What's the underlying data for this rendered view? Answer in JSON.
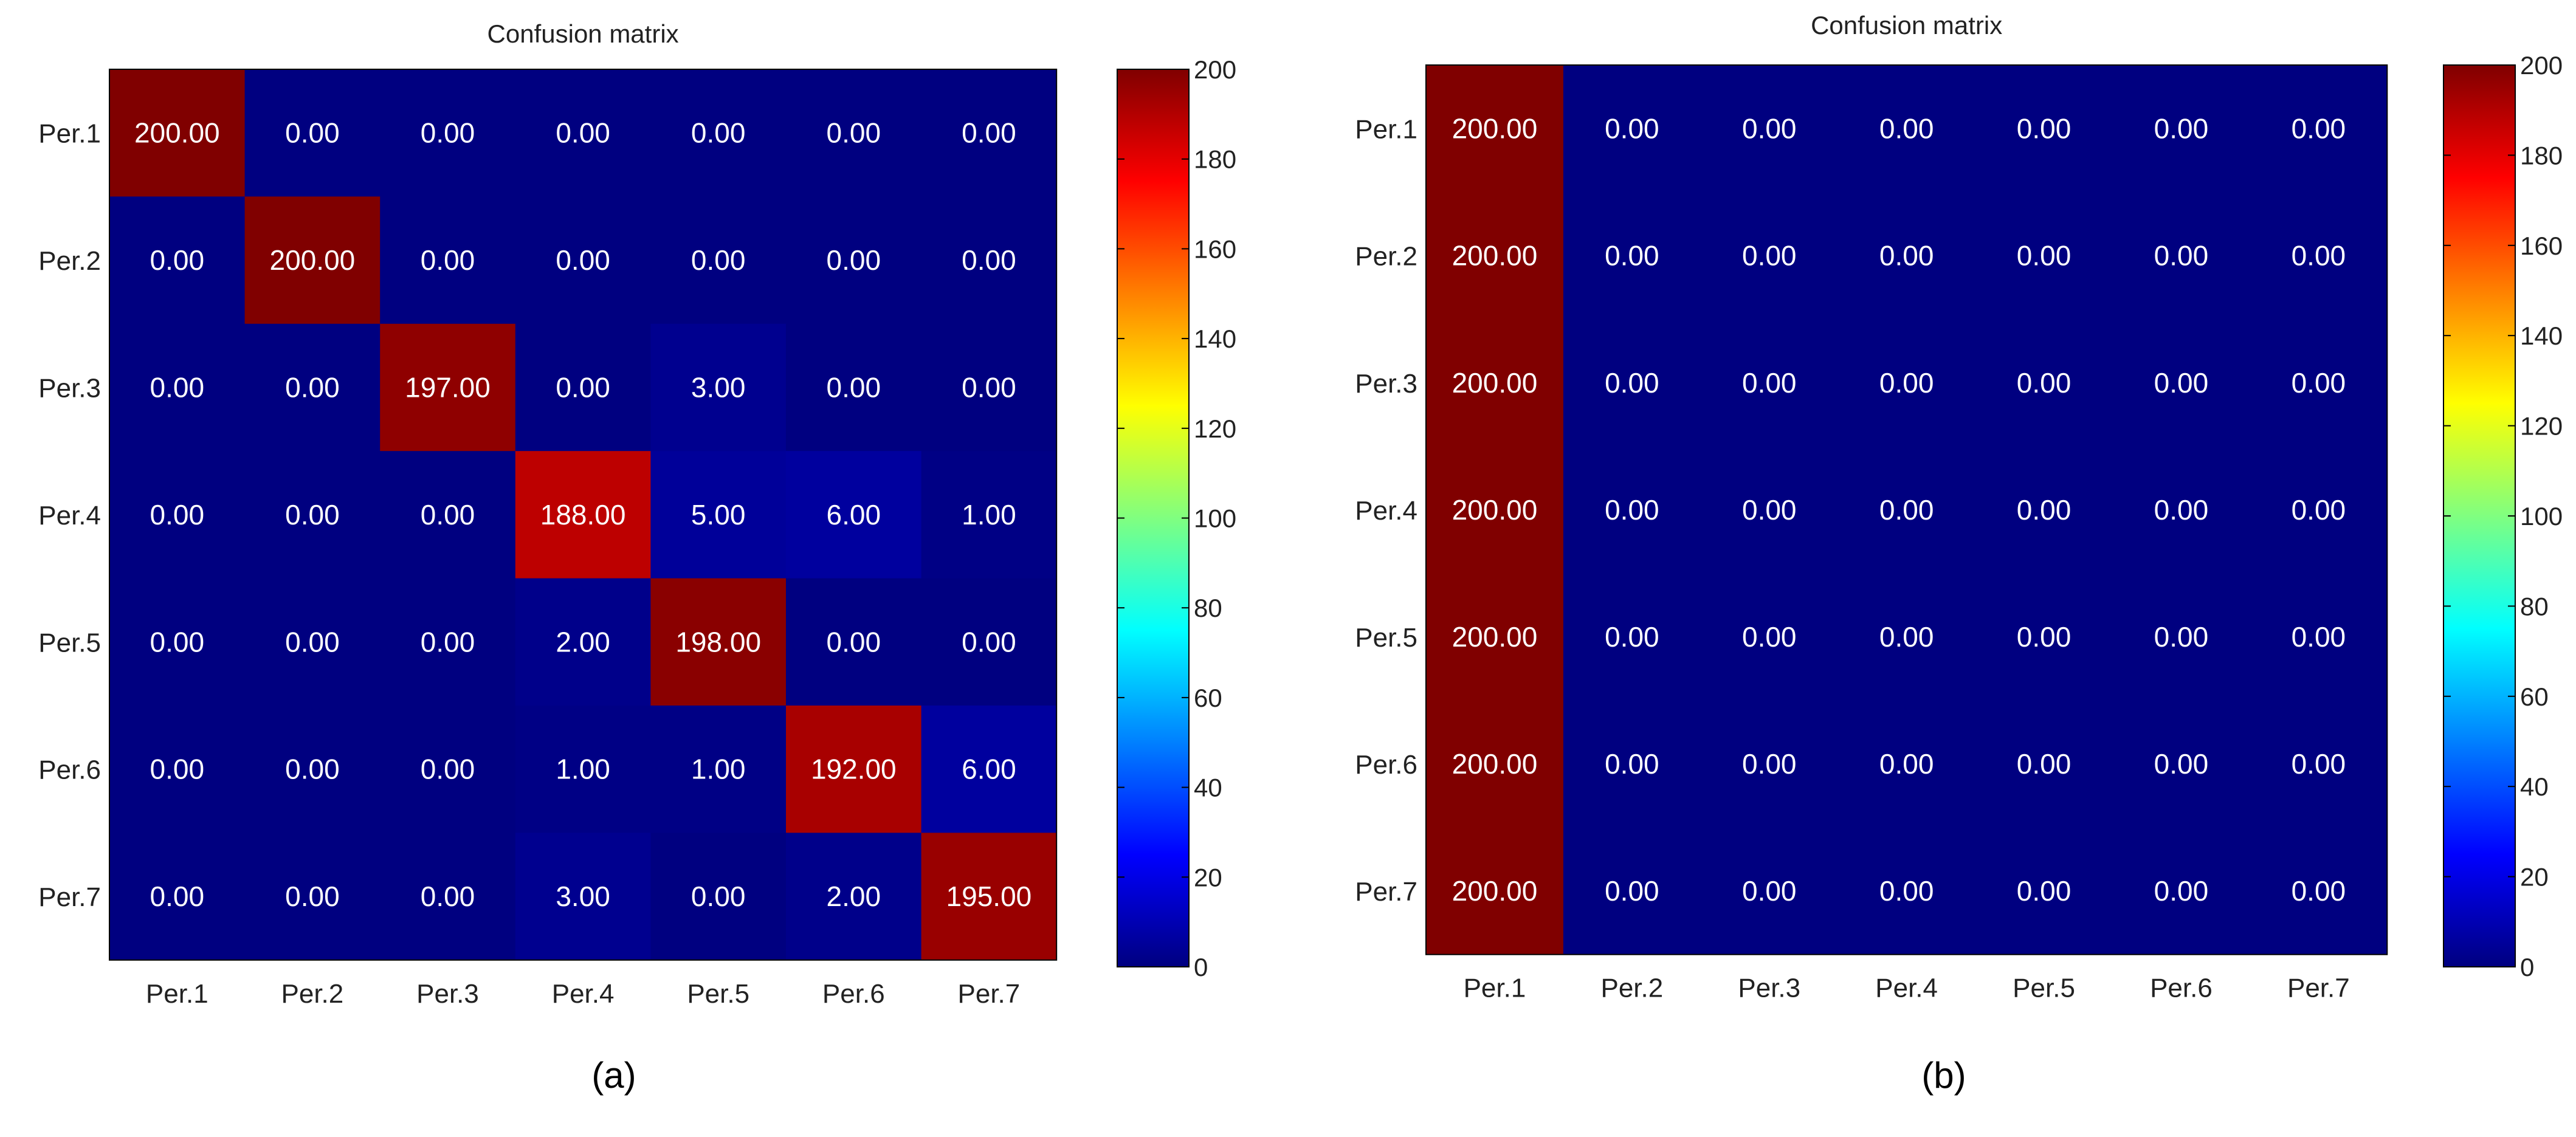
{
  "chart_data": [
    {
      "type": "heatmap",
      "panel_label": "(a)",
      "title": "Confusion matrix",
      "rows": [
        "Per.1",
        "Per.2",
        "Per.3",
        "Per.4",
        "Per.5",
        "Per.6",
        "Per.7"
      ],
      "columns": [
        "Per.1",
        "Per.2",
        "Per.3",
        "Per.4",
        "Per.5",
        "Per.6",
        "Per.7"
      ],
      "values": [
        [
          200,
          0,
          0,
          0,
          0,
          0,
          0
        ],
        [
          0,
          200,
          0,
          0,
          0,
          0,
          0
        ],
        [
          0,
          0,
          197,
          0,
          3,
          0,
          0
        ],
        [
          0,
          0,
          0,
          188,
          5,
          6,
          1
        ],
        [
          0,
          0,
          0,
          2,
          198,
          0,
          0
        ],
        [
          0,
          0,
          0,
          1,
          1,
          192,
          6
        ],
        [
          0,
          0,
          0,
          3,
          0,
          2,
          195
        ]
      ],
      "cell_label_decimals": 2,
      "colormap": "jet",
      "color_range": [
        0,
        200
      ],
      "colorbar_ticks": [
        0,
        20,
        40,
        60,
        80,
        100,
        120,
        140,
        160,
        180,
        200
      ]
    },
    {
      "type": "heatmap",
      "panel_label": "(b)",
      "title": "Confusion matrix",
      "rows": [
        "Per.1",
        "Per.2",
        "Per.3",
        "Per.4",
        "Per.5",
        "Per.6",
        "Per.7"
      ],
      "columns": [
        "Per.1",
        "Per.2",
        "Per.3",
        "Per.4",
        "Per.5",
        "Per.6",
        "Per.7"
      ],
      "values": [
        [
          200,
          0,
          0,
          0,
          0,
          0,
          0
        ],
        [
          200,
          0,
          0,
          0,
          0,
          0,
          0
        ],
        [
          200,
          0,
          0,
          0,
          0,
          0,
          0
        ],
        [
          200,
          0,
          0,
          0,
          0,
          0,
          0
        ],
        [
          200,
          0,
          0,
          0,
          0,
          0,
          0
        ],
        [
          200,
          0,
          0,
          0,
          0,
          0,
          0
        ],
        [
          200,
          0,
          0,
          0,
          0,
          0,
          0
        ]
      ],
      "cell_label_decimals": 2,
      "colormap": "jet",
      "color_range": [
        0,
        200
      ],
      "colorbar_ticks": [
        0,
        20,
        40,
        60,
        80,
        100,
        120,
        140,
        160,
        180,
        200
      ]
    }
  ]
}
